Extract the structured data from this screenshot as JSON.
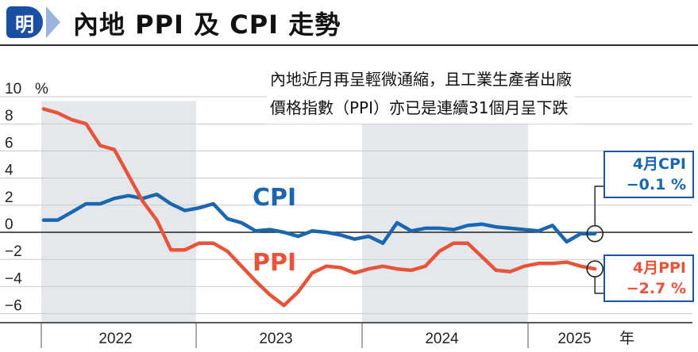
{
  "header": {
    "logo_char": "明",
    "title": "內地 PPI 及 CPI 走勢"
  },
  "annotation": {
    "line1": "內地近月再呈輕微通縮，且工業生產者出廠",
    "line2": "價格指數（PPI）亦已是連續31個月呈下跌"
  },
  "callouts": {
    "cpi": {
      "line1": "4月CPI",
      "line2": "−0.1 %"
    },
    "ppi": {
      "line1": "4月PPI",
      "line2": "−2.7 %"
    }
  },
  "colors": {
    "cpi": "#1a67b0",
    "ppi": "#e8543a",
    "band": "#e4e8ed",
    "callout_border": "#1a56a8",
    "callout_ppi_text": "#e8543a",
    "callout_cpi_text": "#1a67b0"
  },
  "chart_data": {
    "type": "line",
    "ylabel_unit": "%",
    "x_unit_label": "年",
    "ylim": [
      -6.8,
      10.5
    ],
    "y_ticks": [
      10,
      8,
      6,
      4,
      2,
      0,
      -2,
      -4,
      -6
    ],
    "year_labels": [
      "2022",
      "2023",
      "2024",
      "2025"
    ],
    "grid": true,
    "shaded_years": [
      "2022",
      "2024"
    ],
    "series": [
      {
        "name": "CPI",
        "values": [
          0.9,
          0.9,
          1.5,
          2.1,
          2.1,
          2.5,
          2.7,
          2.5,
          2.8,
          2.1,
          1.6,
          1.8,
          2.1,
          1.0,
          0.7,
          0.1,
          0.2,
          0.0,
          -0.3,
          0.1,
          0.0,
          -0.2,
          -0.5,
          -0.3,
          -0.8,
          0.7,
          0.1,
          0.3,
          0.3,
          0.2,
          0.5,
          0.6,
          0.4,
          0.3,
          0.2,
          0.1,
          0.5,
          -0.7,
          -0.1,
          -0.1
        ]
      },
      {
        "name": "PPI",
        "values": [
          9.1,
          8.8,
          8.3,
          8.0,
          6.4,
          6.1,
          4.2,
          2.3,
          0.9,
          -1.3,
          -1.3,
          -0.8,
          -0.8,
          -1.4,
          -2.5,
          -3.6,
          -4.6,
          -5.4,
          -4.4,
          -3.0,
          -2.5,
          -2.6,
          -3.0,
          -2.7,
          -2.5,
          -2.7,
          -2.8,
          -2.5,
          -1.4,
          -0.8,
          -0.8,
          -1.8,
          -2.8,
          -2.9,
          -2.5,
          -2.3,
          -2.3,
          -2.2,
          -2.5,
          -2.7
        ]
      }
    ],
    "latest": {
      "CPI": -0.1,
      "PPI": -2.7
    }
  }
}
